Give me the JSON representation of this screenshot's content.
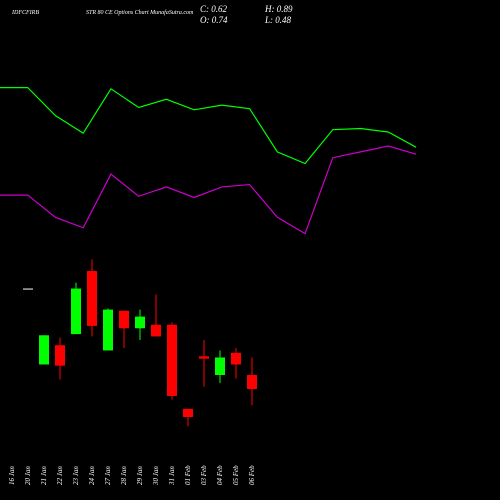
{
  "chart_data": {
    "type": "candlestick",
    "title": "IDFCFIRB",
    "subtitle": "STR 80 CE Options  Chart MunafaSutra.com",
    "ohlc_labels": [
      "C: 0.62",
      "O: 0.74",
      "H: 0.89",
      "L: 0.48"
    ],
    "categories": [
      "16 Jan",
      "20 Jan",
      "21 Jan",
      "22 Jan",
      "23 Jan",
      "24 Jan",
      "27 Jan",
      "28 Jan",
      "29 Jan",
      "30 Jan",
      "31 Jan",
      "01 Feb",
      "03 Feb",
      "04 Feb",
      "05 Feb",
      "06 Feb"
    ],
    "open": [
      null,
      1.48,
      0.83,
      0.995,
      1.09,
      1.63,
      0.95,
      1.29,
      1.14,
      1.17,
      1.17,
      0.45,
      0.9,
      0.74,
      0.93,
      0.74
    ],
    "high": [
      null,
      1.48,
      1.08,
      1.06,
      1.53,
      1.73,
      1.31,
      1.29,
      1.3,
      1.43,
      1.19,
      0.45,
      1.04,
      0.95,
      0.97,
      0.89
    ],
    "low": [
      null,
      1.48,
      0.83,
      0.7,
      1.09,
      1.07,
      0.95,
      0.97,
      1.04,
      1.07,
      0.53,
      0.3,
      0.64,
      0.67,
      0.71,
      0.48
    ],
    "close": [
      null,
      1.48,
      1.08,
      0.82,
      1.48,
      1.16,
      1.3,
      1.14,
      1.24,
      1.07,
      0.56,
      0.38,
      0.88,
      0.89,
      0.83,
      0.62
    ],
    "up_color": "#00ff00",
    "down_color": "#ff0000",
    "lines": [
      {
        "color": "#00ff00",
        "values": [
          3.2,
          3.2,
          2.96,
          2.81,
          3.19,
          3.03,
          3.1,
          3.01,
          3.05,
          3.02,
          2.65,
          2.55,
          2.84,
          2.85,
          2.82,
          2.69
        ]
      },
      {
        "color": "#cc00cc",
        "values": [
          2.28,
          2.28,
          2.09,
          2.0,
          2.46,
          2.27,
          2.35,
          2.26,
          2.35,
          2.37,
          2.09,
          1.95,
          2.6,
          2.65,
          2.7,
          2.63
        ]
      }
    ],
    "ylim": [
      -0.33,
      3.95
    ]
  }
}
